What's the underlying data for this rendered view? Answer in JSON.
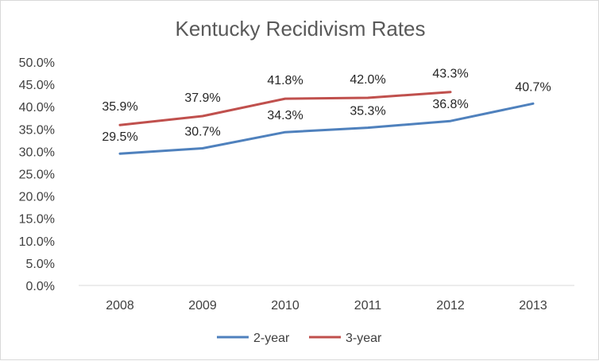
{
  "chart_data": {
    "type": "line",
    "title": "Kentucky Recidivism Rates",
    "xlabel": "",
    "ylabel": "",
    "categories": [
      "2008",
      "2009",
      "2010",
      "2011",
      "2012",
      "2013"
    ],
    "ylim": [
      0,
      50
    ],
    "y_ticks": [
      "0.0%",
      "5.0%",
      "10.0%",
      "15.0%",
      "20.0%",
      "25.0%",
      "30.0%",
      "35.0%",
      "40.0%",
      "45.0%",
      "50.0%"
    ],
    "grid": false,
    "legend": "bottom",
    "series": [
      {
        "name": "2-year",
        "color": "#4f81bd",
        "values": [
          29.5,
          30.7,
          34.3,
          35.3,
          36.8,
          40.7
        ],
        "labels": [
          "29.5%",
          "30.7%",
          "34.3%",
          "35.3%",
          "36.8%",
          "40.7%"
        ]
      },
      {
        "name": "3-year",
        "color": "#c0504d",
        "values": [
          35.9,
          37.9,
          41.8,
          42.0,
          43.3,
          null
        ],
        "labels": [
          "35.9%",
          "37.9%",
          "41.8%",
          "42.0%",
          "43.3%",
          null
        ]
      }
    ]
  }
}
